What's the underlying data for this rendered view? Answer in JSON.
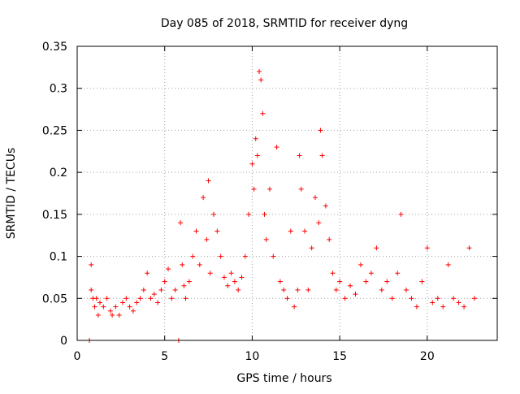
{
  "chart_data": {
    "type": "scatter",
    "title": "Day 085 of 2018, SRMTID for receiver dyng",
    "xlabel": "GPS time / hours",
    "ylabel": "SRMTID / TECUs",
    "xlim": [
      0,
      24
    ],
    "ylim": [
      0,
      0.35
    ],
    "xticks": [
      0,
      5,
      10,
      15,
      20
    ],
    "xtick_labels": [
      "0",
      "5",
      "10",
      "15",
      "20"
    ],
    "yticks": [
      0,
      0.05,
      0.1,
      0.15,
      0.2,
      0.25,
      0.3,
      0.35
    ],
    "ytick_labels": [
      "0",
      "0.05",
      "0.1",
      "0.15",
      "0.2",
      "0.25",
      "0.3",
      "0.35"
    ],
    "grid": true,
    "marker": "+",
    "color": "#ff0000",
    "series": [
      {
        "name": "SRMTID",
        "x": [
          0.7,
          0.8,
          0.8,
          0.9,
          1.0,
          1.1,
          1.2,
          1.3,
          1.5,
          1.7,
          1.9,
          2.0,
          2.2,
          2.4,
          2.6,
          2.8,
          3.0,
          3.2,
          3.4,
          3.6,
          3.8,
          4.0,
          4.2,
          4.4,
          4.6,
          4.8,
          5.0,
          5.2,
          5.4,
          5.6,
          5.8,
          5.9,
          6.0,
          6.1,
          6.2,
          6.4,
          6.6,
          6.8,
          7.0,
          7.2,
          7.4,
          7.5,
          7.6,
          7.8,
          8.0,
          8.2,
          8.4,
          8.6,
          8.8,
          9.0,
          9.2,
          9.4,
          9.6,
          9.8,
          10.0,
          10.1,
          10.2,
          10.3,
          10.4,
          10.5,
          10.6,
          10.7,
          10.8,
          11.0,
          11.2,
          11.4,
          11.6,
          11.8,
          12.0,
          12.2,
          12.4,
          12.6,
          12.7,
          12.8,
          13.0,
          13.2,
          13.4,
          13.6,
          13.8,
          13.9,
          14.0,
          14.2,
          14.4,
          14.6,
          14.8,
          15.0,
          15.3,
          15.6,
          15.9,
          16.2,
          16.5,
          16.8,
          17.1,
          17.4,
          17.7,
          18.0,
          18.3,
          18.5,
          18.8,
          19.1,
          19.4,
          19.7,
          20.0,
          20.3,
          20.6,
          20.9,
          21.2,
          21.5,
          21.8,
          22.1,
          22.4,
          22.7
        ],
        "y": [
          0.0,
          0.09,
          0.06,
          0.05,
          0.04,
          0.05,
          0.03,
          0.045,
          0.04,
          0.05,
          0.035,
          0.03,
          0.04,
          0.03,
          0.045,
          0.05,
          0.04,
          0.035,
          0.045,
          0.05,
          0.06,
          0.08,
          0.05,
          0.055,
          0.045,
          0.06,
          0.07,
          0.085,
          0.05,
          0.06,
          0.0,
          0.14,
          0.09,
          0.065,
          0.05,
          0.07,
          0.1,
          0.13,
          0.09,
          0.17,
          0.12,
          0.19,
          0.08,
          0.15,
          0.13,
          0.1,
          0.075,
          0.065,
          0.08,
          0.07,
          0.06,
          0.075,
          0.1,
          0.15,
          0.21,
          0.18,
          0.24,
          0.22,
          0.32,
          0.31,
          0.27,
          0.15,
          0.12,
          0.18,
          0.1,
          0.23,
          0.07,
          0.06,
          0.05,
          0.13,
          0.04,
          0.06,
          0.22,
          0.18,
          0.13,
          0.06,
          0.11,
          0.17,
          0.14,
          0.25,
          0.22,
          0.16,
          0.12,
          0.08,
          0.06,
          0.07,
          0.05,
          0.065,
          0.055,
          0.09,
          0.07,
          0.08,
          0.11,
          0.06,
          0.07,
          0.05,
          0.08,
          0.15,
          0.06,
          0.05,
          0.04,
          0.07,
          0.11,
          0.045,
          0.05,
          0.04,
          0.09,
          0.05,
          0.045,
          0.04,
          0.11,
          0.05
        ]
      }
    ]
  }
}
